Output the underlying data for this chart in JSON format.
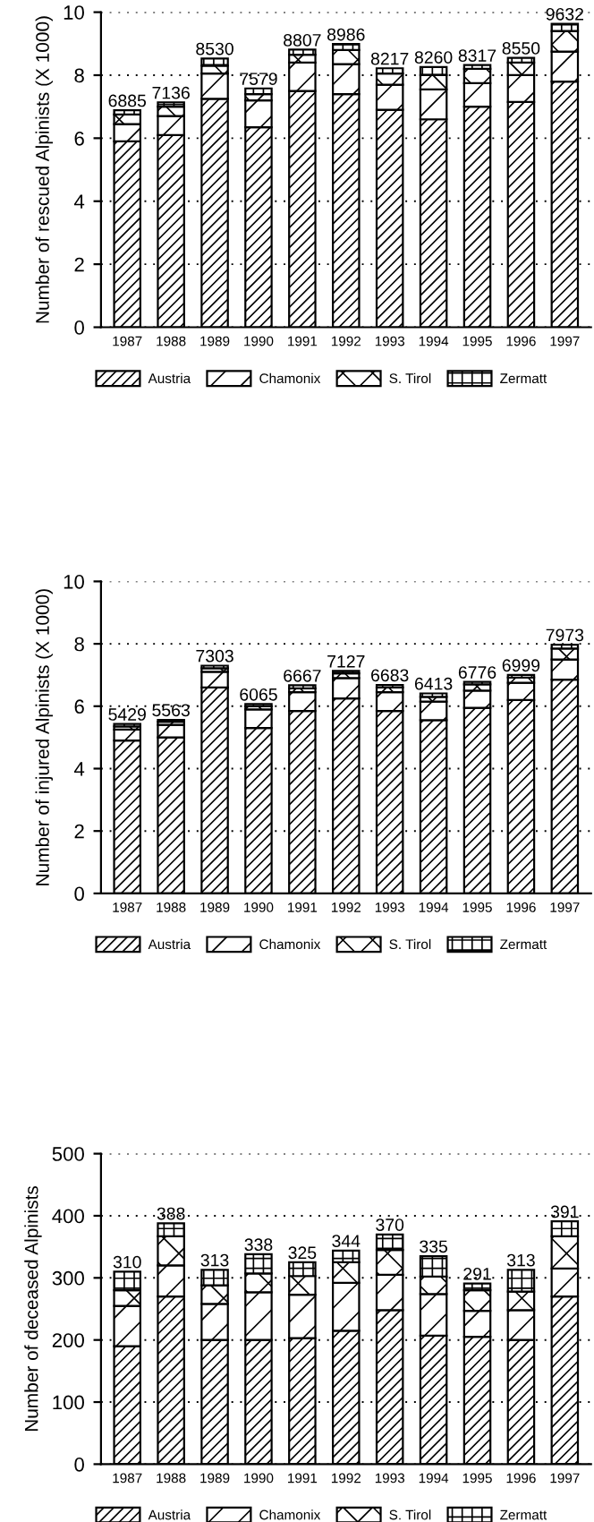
{
  "chart_data": [
    {
      "type": "bar",
      "stacked": true,
      "ylabel": "Number of rescued Alpinists (X 1000)",
      "categories": [
        "1987",
        "1988",
        "1989",
        "1990",
        "1991",
        "1992",
        "1993",
        "1994",
        "1995",
        "1996",
        "1997"
      ],
      "ylim": [
        0,
        10
      ],
      "yticks": [
        0,
        2,
        4,
        6,
        8,
        10
      ],
      "grid": "y",
      "legend": "bottom",
      "series": [
        {
          "name": "Austria",
          "color": "#000000",
          "values": [
            5.9,
            6.1,
            7.25,
            6.35,
            7.5,
            7.4,
            6.9,
            6.6,
            7.0,
            7.15,
            7.8
          ]
        },
        {
          "name": "Chamonix",
          "color": "#000000",
          "values": [
            0.55,
            0.6,
            0.8,
            0.85,
            0.9,
            0.95,
            0.8,
            0.95,
            0.75,
            0.85,
            0.95
          ]
        },
        {
          "name": "S. Tirol",
          "color": "#000000",
          "values": [
            0.3,
            0.3,
            0.25,
            0.2,
            0.25,
            0.45,
            0.35,
            0.45,
            0.45,
            0.4,
            0.65
          ]
        },
        {
          "name": "Zermatt",
          "color": "#000000",
          "values": [
            0.14,
            0.14,
            0.23,
            0.18,
            0.16,
            0.19,
            0.17,
            0.26,
            0.12,
            0.15,
            0.23
          ]
        }
      ],
      "annotations": [
        {
          "text": "6885",
          "x": "1987",
          "y": 6.885
        },
        {
          "text": "7136",
          "x": "1988",
          "y": 7.136
        },
        {
          "text": "8530",
          "x": "1989",
          "y": 8.53
        },
        {
          "text": "7579",
          "x": "1990",
          "y": 7.579
        },
        {
          "text": "8807",
          "x": "1991",
          "y": 8.807
        },
        {
          "text": "8986",
          "x": "1992",
          "y": 8.986
        },
        {
          "text": "8217",
          "x": "1993",
          "y": 8.217
        },
        {
          "text": "8260",
          "x": "1994",
          "y": 8.26
        },
        {
          "text": "8317",
          "x": "1995",
          "y": 8.317
        },
        {
          "text": "8550",
          "x": "1996",
          "y": 8.55
        },
        {
          "text": "9632",
          "x": "1997",
          "y": 9.632
        }
      ]
    },
    {
      "type": "bar",
      "stacked": true,
      "ylabel": "Number of injured Alpinists (X 1000)",
      "categories": [
        "1987",
        "1988",
        "1989",
        "1990",
        "1991",
        "1992",
        "1993",
        "1994",
        "1995",
        "1996",
        "1997"
      ],
      "ylim": [
        0,
        10
      ],
      "yticks": [
        0,
        2,
        4,
        6,
        8,
        10
      ],
      "grid": "y",
      "legend": "bottom",
      "series": [
        {
          "name": "Austria",
          "color": "#000000",
          "values": [
            4.9,
            5.0,
            6.6,
            5.3,
            5.85,
            6.25,
            5.85,
            5.55,
            5.95,
            6.2,
            6.85
          ]
        },
        {
          "name": "Chamonix",
          "color": "#000000",
          "values": [
            0.35,
            0.4,
            0.5,
            0.6,
            0.6,
            0.65,
            0.6,
            0.6,
            0.55,
            0.55,
            0.65
          ]
        },
        {
          "name": "S. Tirol",
          "color": "#000000",
          "values": [
            0.1,
            0.1,
            0.12,
            0.1,
            0.12,
            0.15,
            0.15,
            0.15,
            0.2,
            0.17,
            0.35
          ]
        },
        {
          "name": "Zermatt",
          "color": "#000000",
          "values": [
            0.08,
            0.06,
            0.08,
            0.07,
            0.1,
            0.08,
            0.08,
            0.11,
            0.08,
            0.08,
            0.12
          ]
        }
      ],
      "annotations": [
        {
          "text": "5429",
          "x": "1987",
          "y": 5.429
        },
        {
          "text": "5563",
          "x": "1988",
          "y": 5.563
        },
        {
          "text": "7303",
          "x": "1989",
          "y": 7.303
        },
        {
          "text": "6065",
          "x": "1990",
          "y": 6.065
        },
        {
          "text": "6667",
          "x": "1991",
          "y": 6.667
        },
        {
          "text": "7127",
          "x": "1992",
          "y": 7.127
        },
        {
          "text": "6683",
          "x": "1993",
          "y": 6.683
        },
        {
          "text": "6413",
          "x": "1994",
          "y": 6.413
        },
        {
          "text": "6776",
          "x": "1995",
          "y": 6.776
        },
        {
          "text": "6999",
          "x": "1996",
          "y": 6.999
        },
        {
          "text": "7973",
          "x": "1997",
          "y": 7.973
        }
      ]
    },
    {
      "type": "bar",
      "stacked": true,
      "ylabel": "Number of deceased Alpinists",
      "categories": [
        "1987",
        "1988",
        "1989",
        "1990",
        "1991",
        "1992",
        "1993",
        "1994",
        "1995",
        "1996",
        "1997"
      ],
      "ylim": [
        0,
        500
      ],
      "yticks": [
        0,
        100,
        200,
        300,
        400,
        500
      ],
      "grid": "y",
      "legend": "bottom",
      "series": [
        {
          "name": "Austria",
          "color": "#000000",
          "values": [
            190,
            270,
            200,
            200,
            203,
            215,
            248,
            207,
            205,
            200,
            270
          ]
        },
        {
          "name": "Chamonix",
          "color": "#000000",
          "values": [
            65,
            50,
            58,
            77,
            70,
            77,
            57,
            67,
            42,
            48,
            45
          ]
        },
        {
          "name": "S. Tirol",
          "color": "#000000",
          "values": [
            25,
            47,
            30,
            30,
            30,
            33,
            40,
            28,
            33,
            30,
            52
          ]
        },
        {
          "name": "Zermatt",
          "color": "#000000",
          "values": [
            30,
            21,
            25,
            31,
            22,
            19,
            25,
            33,
            11,
            35,
            24
          ]
        }
      ],
      "totals": [
        "310",
        "388",
        "313",
        "338",
        "325",
        "344",
        "370",
        "335",
        "291",
        "313",
        "391"
      ]
    }
  ]
}
